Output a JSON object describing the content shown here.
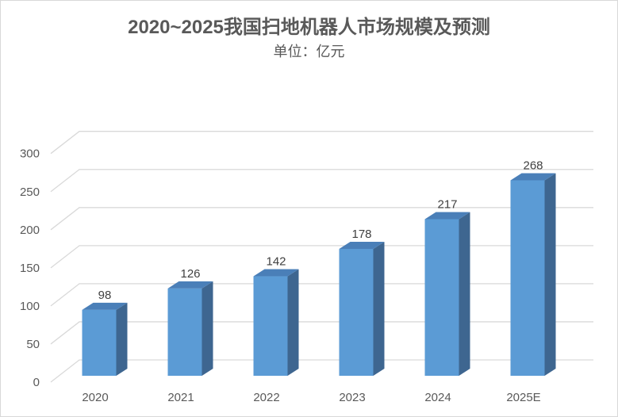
{
  "chart_data": {
    "type": "bar",
    "title": "2020~2025我国扫地机器人市场规模及预测",
    "subtitle": "单位：亿元",
    "categories": [
      "2020",
      "2021",
      "2022",
      "2023",
      "2024",
      "2025E"
    ],
    "values": [
      98,
      126,
      142,
      178,
      217,
      268
    ],
    "data_labels": [
      "98",
      "126",
      "142",
      "178",
      "217",
      "268"
    ],
    "ylim": [
      0,
      300
    ],
    "yticks": [
      "0",
      "50",
      "100",
      "150",
      "200",
      "250",
      "300"
    ],
    "grid": true,
    "style": "3d-column",
    "colors": {
      "front": "#5b9bd5",
      "side": "#3e6690",
      "top": "#4a7fb8",
      "grid": "#d9d9d9"
    }
  }
}
